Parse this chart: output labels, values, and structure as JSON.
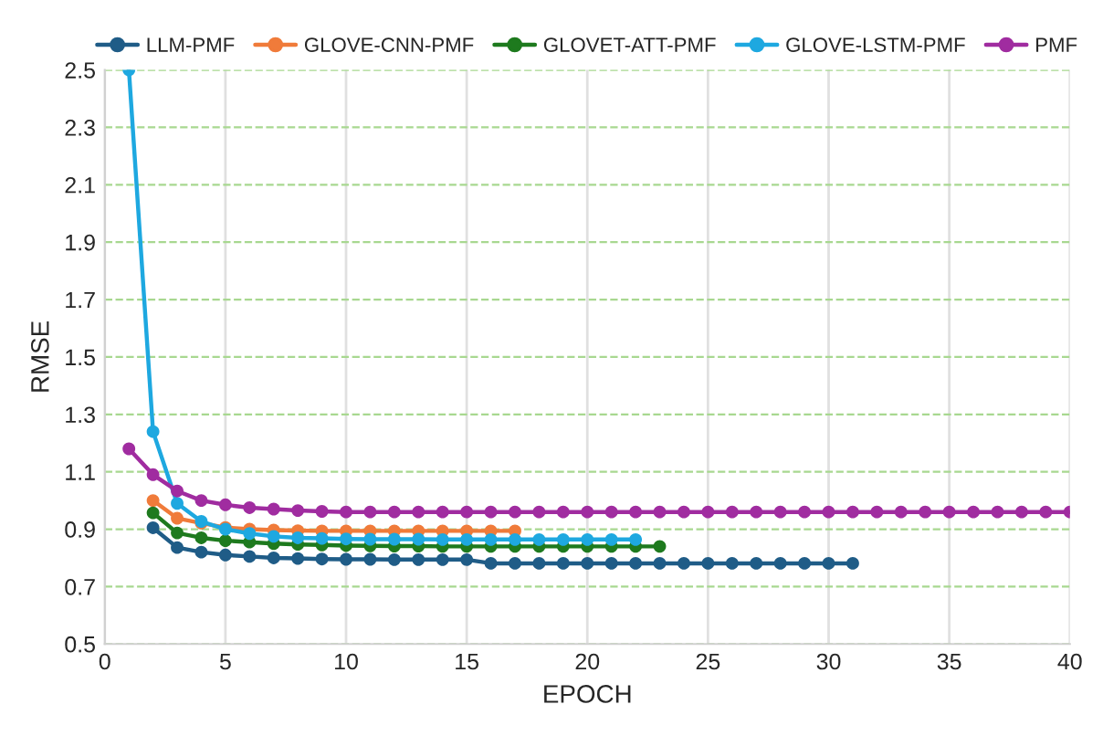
{
  "chart_data": {
    "type": "line",
    "xlabel": "EPOCH",
    "ylabel": "RMSE",
    "xlim": [
      0,
      40
    ],
    "xticks": [
      0,
      5,
      10,
      15,
      20,
      25,
      30,
      35,
      40
    ],
    "ylim": [
      0.5,
      2.5
    ],
    "yticks": [
      0.5,
      0.7,
      0.9,
      1.1,
      1.3,
      1.5,
      1.7,
      1.9,
      2.1,
      2.3,
      2.5
    ],
    "grid": true,
    "legend": "top",
    "marker": "circle",
    "line_style": "solid",
    "series": [
      {
        "name": "LLM-PMF",
        "color": "#1f5c87",
        "x": [
          2,
          3,
          4,
          5,
          6,
          7,
          8,
          9,
          10,
          11,
          12,
          13,
          14,
          15,
          16,
          17,
          18,
          19,
          20,
          21,
          22,
          23,
          24,
          25,
          26,
          27,
          28,
          29,
          30,
          31
        ],
        "values": [
          0.905,
          0.836,
          0.82,
          0.81,
          0.805,
          0.8,
          0.798,
          0.796,
          0.795,
          0.795,
          0.794,
          0.794,
          0.794,
          0.794,
          0.781,
          0.781,
          0.781,
          0.781,
          0.781,
          0.781,
          0.781,
          0.781,
          0.781,
          0.781,
          0.781,
          0.781,
          0.781,
          0.781,
          0.781,
          0.781
        ]
      },
      {
        "name": "GLOVE-CNN-PMF",
        "color": "#f07b3a",
        "x": [
          2,
          3,
          4,
          5,
          6,
          7,
          8,
          9,
          10,
          11,
          12,
          13,
          14,
          15,
          16,
          17
        ],
        "values": [
          1.0,
          0.938,
          0.921,
          0.906,
          0.9,
          0.897,
          0.895,
          0.894,
          0.894,
          0.894,
          0.894,
          0.894,
          0.894,
          0.894,
          0.894,
          0.894
        ]
      },
      {
        "name": "GLOVET-ATT-PMF",
        "color": "#1e7a1e",
        "x": [
          2,
          3,
          4,
          5,
          6,
          7,
          8,
          9,
          10,
          11,
          12,
          13,
          14,
          15,
          16,
          17,
          18,
          19,
          20,
          21,
          22,
          23
        ],
        "values": [
          0.957,
          0.887,
          0.87,
          0.86,
          0.855,
          0.85,
          0.847,
          0.845,
          0.843,
          0.842,
          0.841,
          0.841,
          0.84,
          0.84,
          0.84,
          0.84,
          0.84,
          0.84,
          0.84,
          0.84,
          0.84,
          0.84
        ]
      },
      {
        "name": "GLOVE-LSTM-PMF",
        "color": "#1ea8e0",
        "x": [
          1,
          2,
          3,
          4,
          5,
          6,
          7,
          8,
          9,
          10,
          11,
          12,
          13,
          14,
          15,
          16,
          17,
          18,
          19,
          20,
          21,
          22
        ],
        "values": [
          2.5,
          1.24,
          0.99,
          0.927,
          0.9,
          0.885,
          0.875,
          0.87,
          0.868,
          0.866,
          0.865,
          0.865,
          0.865,
          0.864,
          0.864,
          0.864,
          0.864,
          0.864,
          0.864,
          0.864,
          0.864,
          0.864
        ]
      },
      {
        "name": "PMF",
        "color": "#a02ca0",
        "x": [
          1,
          2,
          3,
          4,
          5,
          6,
          7,
          8,
          9,
          10,
          11,
          12,
          13,
          14,
          15,
          16,
          17,
          18,
          19,
          20,
          21,
          22,
          23,
          24,
          25,
          26,
          27,
          28,
          29,
          30,
          31,
          32,
          33,
          34,
          35,
          36,
          37,
          38,
          39,
          40
        ],
        "values": [
          1.18,
          1.09,
          1.033,
          1.0,
          0.985,
          0.975,
          0.97,
          0.965,
          0.962,
          0.96,
          0.96,
          0.96,
          0.96,
          0.96,
          0.96,
          0.96,
          0.96,
          0.96,
          0.96,
          0.96,
          0.96,
          0.96,
          0.96,
          0.96,
          0.96,
          0.96,
          0.96,
          0.96,
          0.96,
          0.96,
          0.96,
          0.96,
          0.96,
          0.96,
          0.96,
          0.96,
          0.96,
          0.96,
          0.96,
          0.96
        ]
      }
    ]
  }
}
